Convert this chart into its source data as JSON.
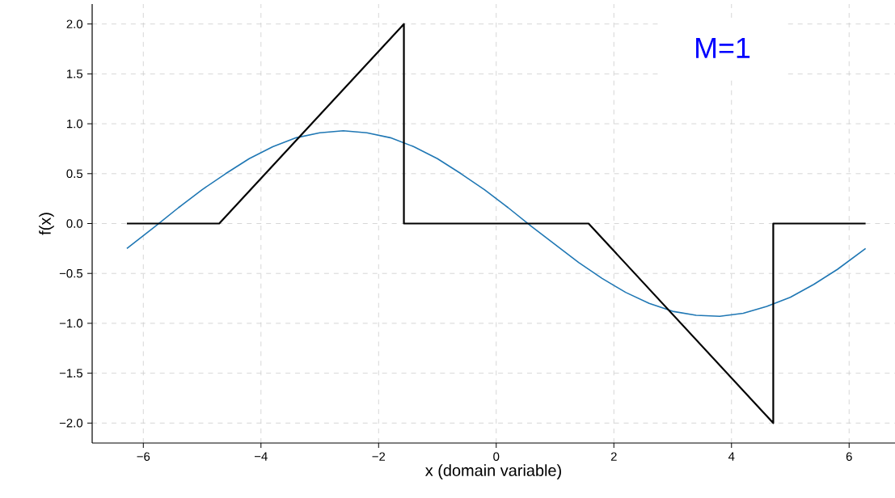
{
  "chart_data": {
    "type": "line",
    "xlabel": "x (domain variable)",
    "ylabel": "f(x)",
    "annotations": [
      "M=1"
    ],
    "xlim": [
      -6.87,
      6.78
    ],
    "ylim": [
      -2.2,
      2.2
    ],
    "xticks": [
      {
        "value": -6,
        "label": "−6"
      },
      {
        "value": -4,
        "label": "−4"
      },
      {
        "value": -2,
        "label": "−2"
      },
      0,
      2,
      4,
      6
    ],
    "yticks": [
      {
        "value": -2.0,
        "label": "−2.0"
      },
      {
        "value": -1.5,
        "label": "−1.5"
      },
      {
        "value": -1.0,
        "label": "−1.0"
      },
      {
        "value": -0.5,
        "label": "−0.5"
      },
      {
        "value": 0.0,
        "label": "0.0"
      },
      {
        "value": 0.5,
        "label": "0.5"
      },
      {
        "value": 1.0,
        "label": "1.0"
      },
      {
        "value": 1.5,
        "label": "1.5"
      },
      {
        "value": 2.0,
        "label": "2.0"
      }
    ],
    "grid": true,
    "line_style": "solid",
    "marker": "none",
    "series": [
      {
        "color": "#1f77b4",
        "x": [
          -6.28,
          -5.8,
          -5.4,
          -5.0,
          -4.6,
          -4.2,
          -3.8,
          -3.4,
          -3.0,
          -2.6,
          -2.2,
          -1.8,
          -1.4,
          -1.0,
          -0.6,
          -0.2,
          0.2,
          0.6,
          1.0,
          1.4,
          1.8,
          2.2,
          2.6,
          3.0,
          3.4,
          3.8,
          4.2,
          4.6,
          5.0,
          5.4,
          5.8,
          6.28
        ],
        "values": [
          -0.25,
          -0.03,
          0.16,
          0.34,
          0.5,
          0.65,
          0.77,
          0.86,
          0.91,
          0.93,
          0.91,
          0.86,
          0.77,
          0.65,
          0.5,
          0.34,
          0.16,
          -0.03,
          -0.21,
          -0.39,
          -0.55,
          -0.69,
          -0.8,
          -0.88,
          -0.92,
          -0.93,
          -0.9,
          -0.83,
          -0.74,
          -0.61,
          -0.46,
          -0.25
        ]
      },
      {
        "color": "#000000",
        "x": [
          -6.28,
          -4.71,
          -1.57,
          -1.57,
          1.57,
          4.71,
          4.71,
          6.28
        ],
        "values": [
          0,
          0,
          2,
          0,
          0,
          -2,
          0,
          0
        ]
      }
    ]
  }
}
